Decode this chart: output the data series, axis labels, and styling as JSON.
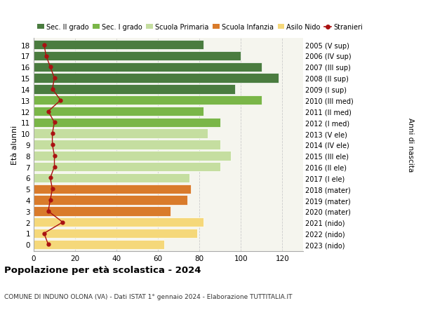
{
  "ages": [
    18,
    17,
    16,
    15,
    14,
    13,
    12,
    11,
    10,
    9,
    8,
    7,
    6,
    5,
    4,
    3,
    2,
    1,
    0
  ],
  "bar_values": [
    82,
    100,
    110,
    118,
    97,
    110,
    82,
    90,
    84,
    90,
    95,
    90,
    75,
    76,
    74,
    66,
    82,
    79,
    63
  ],
  "stranieri": [
    5,
    6,
    8,
    10,
    9,
    13,
    7,
    10,
    9,
    9,
    10,
    10,
    8,
    9,
    8,
    7,
    14,
    5,
    7
  ],
  "bar_colors": [
    "#4a7c3f",
    "#4a7c3f",
    "#4a7c3f",
    "#4a7c3f",
    "#4a7c3f",
    "#7ab648",
    "#7ab648",
    "#7ab648",
    "#c5dea0",
    "#c5dea0",
    "#c5dea0",
    "#c5dea0",
    "#c5dea0",
    "#d97b2b",
    "#d97b2b",
    "#d97b2b",
    "#f5d87a",
    "#f5d87a",
    "#f5d87a"
  ],
  "right_labels": [
    "2005 (V sup)",
    "2006 (IV sup)",
    "2007 (III sup)",
    "2008 (II sup)",
    "2009 (I sup)",
    "2010 (III med)",
    "2011 (II med)",
    "2012 (I med)",
    "2013 (V ele)",
    "2014 (IV ele)",
    "2015 (III ele)",
    "2016 (II ele)",
    "2017 (I ele)",
    "2018 (mater)",
    "2019 (mater)",
    "2020 (mater)",
    "2021 (nido)",
    "2022 (nido)",
    "2023 (nido)"
  ],
  "legend_labels": [
    "Sec. II grado",
    "Sec. I grado",
    "Scuola Primaria",
    "Scuola Infanzia",
    "Asilo Nido",
    "Stranieri"
  ],
  "legend_colors": [
    "#4a7c3f",
    "#7ab648",
    "#c5dea0",
    "#d97b2b",
    "#f5d87a",
    "#cc2222"
  ],
  "ylabel": "Età alunni",
  "ylabel2": "Anni di nascita",
  "title": "Popolazione per età scolastica - 2024",
  "subtitle": "COMUNE DI INDUNO OLONA (VA) - Dati ISTAT 1° gennaio 2024 - Elaborazione TUTTITALIA.IT",
  "xlim": [
    0,
    130
  ],
  "xticks": [
    0,
    20,
    40,
    60,
    80,
    100,
    120
  ],
  "background_color": "#ffffff",
  "plot_bg_color": "#f5f5ee",
  "grid_color": "#cccccc",
  "stranieri_color": "#aa1111",
  "bar_height": 0.85
}
